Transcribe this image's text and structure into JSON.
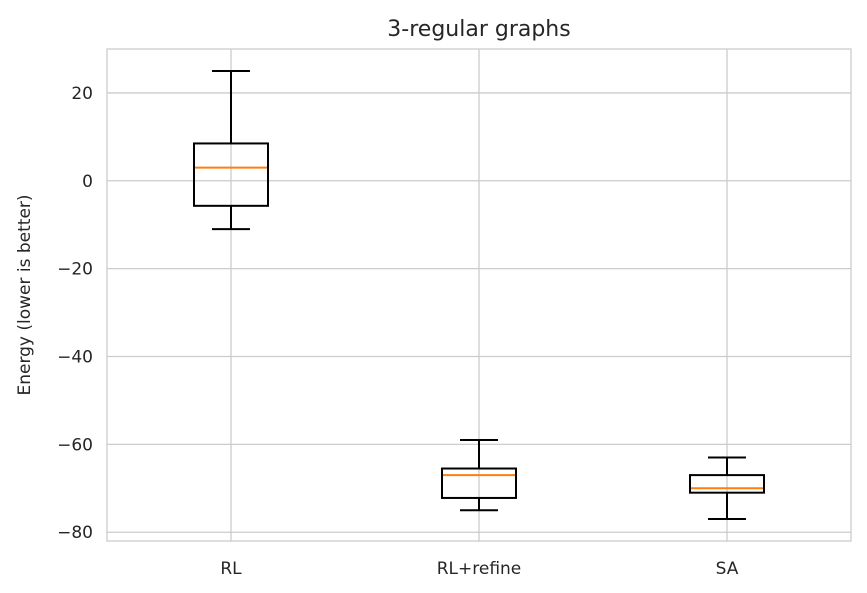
{
  "chart_data": {
    "type": "box",
    "title": "3-regular graphs",
    "xlabel": "",
    "ylabel": "Energy (lower is better)",
    "ylim": [
      -82,
      30
    ],
    "yticks": [
      20,
      0,
      -20,
      -40,
      -60,
      -80
    ],
    "ytick_labels": [
      "20",
      "0",
      "−20",
      "−40",
      "−60",
      "−80"
    ],
    "grid": true,
    "categories": [
      "RL",
      "RL+refine",
      "SA"
    ],
    "boxes": [
      {
        "whisker_low": -11,
        "q1": -5.7,
        "median": 3,
        "q3": 8.5,
        "whisker_high": 25
      },
      {
        "whisker_low": -75,
        "q1": -72.2,
        "median": -67,
        "q3": -65.5,
        "whisker_high": -59
      },
      {
        "whisker_low": -77,
        "q1": -71,
        "median": -70,
        "q3": -67,
        "whisker_high": -63
      }
    ],
    "colors": {
      "box": "#000000",
      "median": "#ff7f0e",
      "grid": "#cccccc",
      "text": "#262626"
    }
  }
}
